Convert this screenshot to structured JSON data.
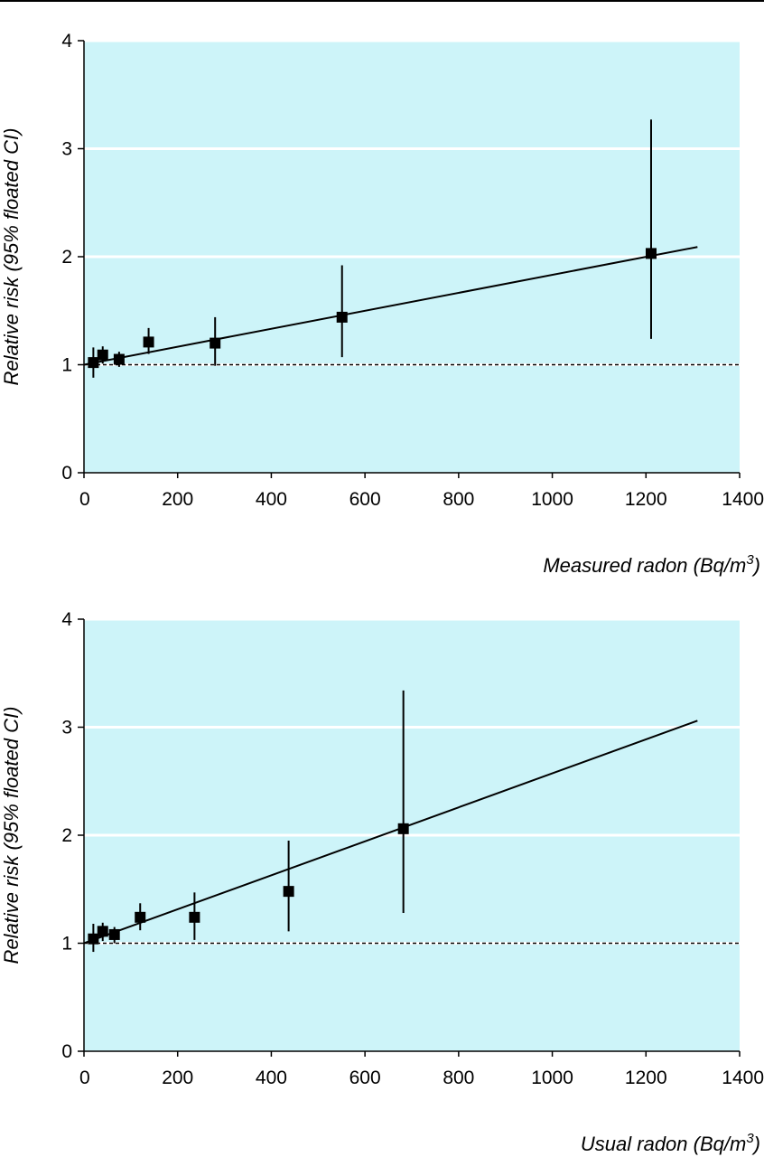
{
  "colors": {
    "plot_background": "#cdf4f9",
    "gridline": "#ffffff",
    "ink": "#000000"
  },
  "chart_data": [
    {
      "type": "scatter",
      "xlabel_main": "Measured radon (Bq/m",
      "xlabel_sup": "3",
      "xlabel_close": ")",
      "ylabel": "Relative risk (95% floated CI)",
      "xlim": [
        0,
        1400
      ],
      "ylim": [
        0,
        4
      ],
      "xticks": [
        "0",
        "200",
        "400",
        "600",
        "800",
        "1000",
        "1200",
        "1400"
      ],
      "yticks": [
        "0",
        "1",
        "2",
        "3",
        "4"
      ],
      "grid": "horizontal",
      "reference_line": {
        "y": 1,
        "style": "dashed"
      },
      "fit_line": {
        "x": [
          0,
          1310
        ],
        "y": [
          1.0,
          2.09
        ]
      },
      "points": [
        {
          "x": 20,
          "y": 1.02,
          "ci": [
            0.88,
            1.16
          ]
        },
        {
          "x": 40,
          "y": 1.09,
          "ci": [
            1.01,
            1.17
          ]
        },
        {
          "x": 75,
          "y": 1.05,
          "ci": [
            0.98,
            1.12
          ]
        },
        {
          "x": 138,
          "y": 1.21,
          "ci": [
            1.1,
            1.34
          ]
        },
        {
          "x": 280,
          "y": 1.2,
          "ci": [
            0.99,
            1.44
          ]
        },
        {
          "x": 551,
          "y": 1.44,
          "ci": [
            1.07,
            1.92
          ]
        },
        {
          "x": 1211,
          "y": 2.03,
          "ci": [
            1.24,
            3.27
          ]
        }
      ]
    },
    {
      "type": "scatter",
      "xlabel_main": "Usual radon (Bq/m",
      "xlabel_sup": "3",
      "xlabel_close": ")",
      "ylabel": "Relative risk (95% floated CI)",
      "xlim": [
        0,
        1400
      ],
      "ylim": [
        0,
        4
      ],
      "xticks": [
        "0",
        "200",
        "400",
        "600",
        "800",
        "1000",
        "1200",
        "1400"
      ],
      "yticks": [
        "0",
        "1",
        "2",
        "3",
        "4"
      ],
      "grid": "horizontal",
      "reference_line": {
        "y": 1,
        "style": "dashed"
      },
      "fit_line": {
        "x": [
          0,
          1310
        ],
        "y": [
          1.0,
          3.06
        ]
      },
      "points": [
        {
          "x": 20,
          "y": 1.04,
          "ci": [
            0.92,
            1.18
          ]
        },
        {
          "x": 40,
          "y": 1.11,
          "ci": [
            1.02,
            1.19
          ]
        },
        {
          "x": 65,
          "y": 1.08,
          "ci": [
            1.0,
            1.15
          ]
        },
        {
          "x": 120,
          "y": 1.24,
          "ci": [
            1.12,
            1.37
          ]
        },
        {
          "x": 236,
          "y": 1.24,
          "ci": [
            1.03,
            1.47
          ]
        },
        {
          "x": 437,
          "y": 1.48,
          "ci": [
            1.11,
            1.95
          ]
        },
        {
          "x": 682,
          "y": 2.06,
          "ci": [
            1.28,
            3.34
          ]
        }
      ]
    }
  ]
}
